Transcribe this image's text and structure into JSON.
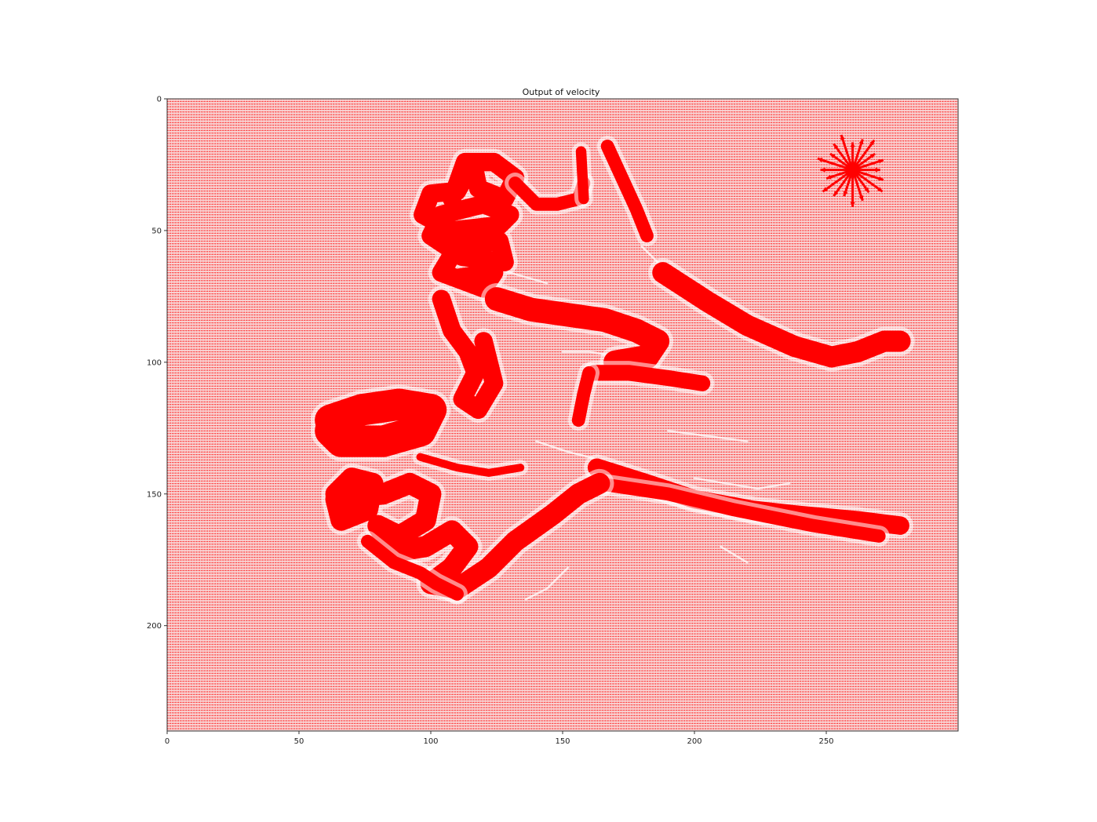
{
  "chart_data": {
    "type": "quiver",
    "title": "Output of velocity",
    "xlabel": "",
    "ylabel": "",
    "xlim": [
      0,
      300
    ],
    "ylim": [
      240,
      0
    ],
    "x_ticks": [
      0,
      50,
      100,
      150,
      200,
      250
    ],
    "y_ticks": [
      0,
      50,
      100,
      150,
      200
    ],
    "grid": false,
    "legend": "none",
    "color": "#ff0000",
    "background_field_color": "#f4c8c8",
    "grid_step": 1,
    "strokes": [
      {
        "name": "upper-loops",
        "points": [
          [
            108,
            38
          ],
          [
            113,
            24
          ],
          [
            124,
            24
          ],
          [
            132,
            30
          ],
          [
            128,
            38
          ],
          [
            118,
            34
          ],
          [
            116,
            24
          ],
          [
            110,
            35
          ],
          [
            100,
            36
          ],
          [
            97,
            44
          ],
          [
            108,
            50
          ],
          [
            126,
            48
          ],
          [
            130,
            44
          ],
          [
            120,
            40
          ],
          [
            104,
            44
          ],
          [
            100,
            52
          ],
          [
            112,
            60
          ],
          [
            128,
            62
          ],
          [
            126,
            54
          ],
          [
            110,
            56
          ],
          [
            104,
            66
          ],
          [
            120,
            72
          ],
          [
            124,
            66
          ],
          [
            110,
            68
          ]
        ],
        "width": 7
      },
      {
        "name": "upper-hook",
        "points": [
          [
            132,
            32
          ],
          [
            140,
            40
          ],
          [
            148,
            40
          ],
          [
            156,
            38
          ],
          [
            158,
            32
          ]
        ],
        "width": 5
      },
      {
        "name": "vertical-strokes",
        "points": [
          [
            157,
            20
          ],
          [
            158,
            38
          ]
        ],
        "width": 4
      },
      {
        "name": "vertical-strokes-2",
        "points": [
          [
            167,
            18
          ],
          [
            178,
            42
          ],
          [
            182,
            52
          ]
        ],
        "width": 5
      },
      {
        "name": "right-long-curve",
        "points": [
          [
            188,
            66
          ],
          [
            205,
            77
          ],
          [
            220,
            86
          ],
          [
            238,
            94
          ],
          [
            252,
            98
          ],
          [
            262,
            96
          ],
          [
            272,
            92
          ],
          [
            278,
            92
          ]
        ],
        "width": 8
      },
      {
        "name": "middle-band",
        "points": [
          [
            125,
            76
          ],
          [
            138,
            80
          ],
          [
            152,
            82
          ],
          [
            166,
            84
          ],
          [
            178,
            88
          ],
          [
            186,
            92
          ],
          [
            182,
            98
          ],
          [
            170,
            100
          ]
        ],
        "width": 9
      },
      {
        "name": "center-vertical",
        "points": [
          [
            104,
            76
          ],
          [
            108,
            88
          ],
          [
            114,
            96
          ],
          [
            117,
            104
          ],
          [
            112,
            114
          ],
          [
            118,
            118
          ],
          [
            124,
            108
          ],
          [
            120,
            92
          ]
        ],
        "width": 7
      },
      {
        "name": "center-spike",
        "points": [
          [
            162,
            104
          ],
          [
            175,
            104
          ],
          [
            190,
            106
          ],
          [
            203,
            108
          ]
        ],
        "width": 6
      },
      {
        "name": "center-spike-2",
        "points": [
          [
            160,
            104
          ],
          [
            158,
            112
          ],
          [
            156,
            122
          ]
        ],
        "width": 5
      },
      {
        "name": "left-blob",
        "points": [
          [
            62,
            122
          ],
          [
            74,
            118
          ],
          [
            88,
            116
          ],
          [
            100,
            118
          ],
          [
            96,
            126
          ],
          [
            82,
            130
          ],
          [
            66,
            130
          ],
          [
            62,
            126
          ]
        ],
        "width": 12
      },
      {
        "name": "lower-long",
        "points": [
          [
            163,
            140
          ],
          [
            182,
            146
          ],
          [
            200,
            152
          ],
          [
            222,
            156
          ],
          [
            240,
            158
          ],
          [
            262,
            160
          ],
          [
            278,
            162
          ]
        ],
        "width": 7
      },
      {
        "name": "lower-long-2",
        "points": [
          [
            163,
            146
          ],
          [
            190,
            150
          ],
          [
            215,
            156
          ],
          [
            245,
            162
          ],
          [
            270,
            166
          ]
        ],
        "width": 5
      },
      {
        "name": "lower-loops",
        "points": [
          [
            64,
            150
          ],
          [
            70,
            144
          ],
          [
            78,
            146
          ],
          [
            76,
            156
          ],
          [
            66,
            160
          ],
          [
            64,
            152
          ],
          [
            82,
            150
          ],
          [
            92,
            146
          ],
          [
            100,
            150
          ],
          [
            98,
            160
          ],
          [
            88,
            166
          ],
          [
            80,
            162
          ],
          [
            86,
            172
          ],
          [
            98,
            170
          ],
          [
            108,
            164
          ],
          [
            114,
            170
          ],
          [
            108,
            178
          ],
          [
            100,
            184
          ],
          [
            110,
            186
          ],
          [
            122,
            178
          ],
          [
            132,
            168
          ],
          [
            146,
            158
          ],
          [
            156,
            150
          ],
          [
            164,
            146
          ]
        ],
        "width": 8
      },
      {
        "name": "lower-loops-2",
        "points": [
          [
            76,
            168
          ],
          [
            86,
            176
          ],
          [
            96,
            180
          ],
          [
            102,
            184
          ],
          [
            110,
            188
          ]
        ],
        "width": 5
      },
      {
        "name": "lower-thin",
        "points": [
          [
            96,
            136
          ],
          [
            110,
            140
          ],
          [
            122,
            142
          ],
          [
            134,
            140
          ]
        ],
        "width": 3
      }
    ],
    "star": {
      "center": [
        260,
        27
      ],
      "radius": 14,
      "rays": 20
    },
    "faint_strokes": [
      [
        [
          120,
          64
        ],
        [
          130,
          66
        ],
        [
          144,
          70
        ]
      ],
      [
        [
          150,
          96
        ],
        [
          160,
          96
        ],
        [
          172,
          98
        ]
      ],
      [
        [
          140,
          130
        ],
        [
          152,
          134
        ],
        [
          168,
          138
        ]
      ],
      [
        [
          200,
          144
        ],
        [
          212,
          146
        ],
        [
          224,
          148
        ],
        [
          236,
          146
        ]
      ],
      [
        [
          152,
          178
        ],
        [
          144,
          186
        ],
        [
          136,
          190
        ]
      ],
      [
        [
          210,
          170
        ],
        [
          220,
          176
        ]
      ],
      [
        [
          190,
          126
        ],
        [
          205,
          128
        ],
        [
          220,
          130
        ]
      ],
      [
        [
          180,
          56
        ],
        [
          186,
          62
        ],
        [
          190,
          66
        ]
      ]
    ]
  }
}
